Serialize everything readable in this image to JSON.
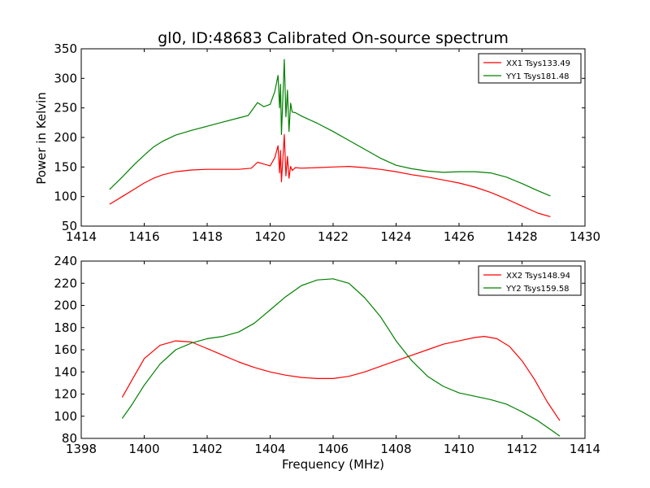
{
  "figure": {
    "title": "gl0, ID:48683 Calibrated On-source spectrum",
    "xlabel": "Frequency (MHz)",
    "ylabel": "Power in Kelvin"
  },
  "chart_data": [
    {
      "type": "line",
      "title": "gl0, ID:48683 Calibrated On-source spectrum",
      "ylabel": "Power in Kelvin",
      "xlabel": "",
      "xlim": [
        1414,
        1430
      ],
      "ylim": [
        50,
        350
      ],
      "xticks": [
        1414,
        1416,
        1418,
        1420,
        1422,
        1424,
        1426,
        1428,
        1430
      ],
      "yticks": [
        50,
        100,
        150,
        200,
        250,
        300,
        350
      ],
      "grid": false,
      "legend_position": "top-right",
      "series": [
        {
          "name": "XX1 Tsys133.49",
          "color": "#ff0000",
          "x": [
            1414.9,
            1415.3,
            1415.7,
            1416.0,
            1416.3,
            1416.6,
            1417.0,
            1417.5,
            1418.0,
            1418.5,
            1419.0,
            1419.4,
            1419.6,
            1419.8,
            1420.0,
            1420.15,
            1420.25,
            1420.3,
            1420.33,
            1420.36,
            1420.4,
            1420.45,
            1420.5,
            1420.55,
            1420.6,
            1420.65,
            1420.7,
            1420.8,
            1421.0,
            1421.5,
            1422.0,
            1422.5,
            1423.0,
            1423.5,
            1424.0,
            1424.5,
            1425.0,
            1425.5,
            1426.0,
            1426.5,
            1427.0,
            1427.5,
            1428.0,
            1428.5,
            1428.9
          ],
          "y": [
            87,
            100,
            113,
            123,
            131,
            137,
            142,
            145,
            146,
            146,
            146,
            148,
            158,
            155,
            152,
            166,
            186,
            140,
            178,
            125,
            160,
            205,
            135,
            168,
            131,
            151,
            144,
            149,
            148,
            149,
            150,
            151,
            149,
            146,
            142,
            137,
            133,
            128,
            123,
            116,
            107,
            96,
            84,
            72,
            66
          ]
        },
        {
          "name": "YY1 Tsys181.48",
          "color": "#008000",
          "x": [
            1414.9,
            1415.3,
            1415.7,
            1416.0,
            1416.3,
            1416.6,
            1417.0,
            1417.5,
            1418.0,
            1418.5,
            1419.0,
            1419.3,
            1419.6,
            1419.8,
            1420.0,
            1420.15,
            1420.25,
            1420.3,
            1420.33,
            1420.36,
            1420.4,
            1420.45,
            1420.5,
            1420.55,
            1420.6,
            1420.65,
            1420.7,
            1420.8,
            1421.0,
            1421.5,
            1422.0,
            1422.5,
            1423.0,
            1423.5,
            1424.0,
            1424.5,
            1425.0,
            1425.5,
            1426.0,
            1426.5,
            1427.0,
            1427.5,
            1428.0,
            1428.5,
            1428.9
          ],
          "y": [
            112,
            133,
            155,
            170,
            184,
            194,
            204,
            212,
            219,
            226,
            233,
            237,
            259,
            252,
            256,
            278,
            305,
            250,
            290,
            205,
            262,
            332,
            235,
            280,
            210,
            258,
            243,
            242,
            236,
            224,
            210,
            195,
            180,
            165,
            153,
            147,
            143,
            141,
            142,
            142,
            140,
            133,
            122,
            110,
            101
          ]
        }
      ]
    },
    {
      "type": "line",
      "title": "",
      "ylabel": "",
      "xlabel": "Frequency (MHz)",
      "xlim": [
        1398,
        1414
      ],
      "ylim": [
        80,
        240
      ],
      "xticks": [
        1398,
        1400,
        1402,
        1404,
        1406,
        1408,
        1410,
        1412,
        1414
      ],
      "yticks": [
        80,
        100,
        120,
        140,
        160,
        180,
        200,
        220,
        240
      ],
      "grid": false,
      "legend_position": "top-right",
      "series": [
        {
          "name": "XX2 Tsys148.94",
          "color": "#ff0000",
          "x": [
            1399.3,
            1399.6,
            1400.0,
            1400.5,
            1401.0,
            1401.5,
            1402.0,
            1402.5,
            1403.0,
            1403.5,
            1404.0,
            1404.5,
            1405.0,
            1405.5,
            1406.0,
            1406.5,
            1407.0,
            1407.5,
            1408.0,
            1408.5,
            1409.0,
            1409.5,
            1410.0,
            1410.5,
            1410.8,
            1411.2,
            1411.6,
            1412.0,
            1412.4,
            1412.8,
            1413.2
          ],
          "y": [
            117,
            132,
            152,
            164,
            168,
            167,
            161,
            155,
            149,
            144,
            140,
            137,
            135,
            134,
            134,
            136,
            140,
            145,
            150,
            155,
            160,
            165,
            168,
            171,
            172,
            170,
            163,
            150,
            133,
            113,
            96
          ]
        },
        {
          "name": "YY2 Tsys159.58",
          "color": "#008000",
          "x": [
            1399.3,
            1399.6,
            1400.0,
            1400.5,
            1401.0,
            1401.5,
            1402.0,
            1402.5,
            1403.0,
            1403.5,
            1404.0,
            1404.5,
            1405.0,
            1405.5,
            1406.0,
            1406.5,
            1407.0,
            1407.5,
            1408.0,
            1408.5,
            1409.0,
            1409.5,
            1410.0,
            1410.5,
            1411.0,
            1411.5,
            1412.0,
            1412.5,
            1413.0,
            1413.2
          ],
          "y": [
            98,
            110,
            128,
            147,
            160,
            166,
            170,
            172,
            176,
            184,
            196,
            208,
            218,
            223,
            224,
            220,
            207,
            190,
            168,
            150,
            136,
            127,
            121,
            118,
            115,
            111,
            104,
            96,
            86,
            82
          ]
        }
      ]
    }
  ]
}
